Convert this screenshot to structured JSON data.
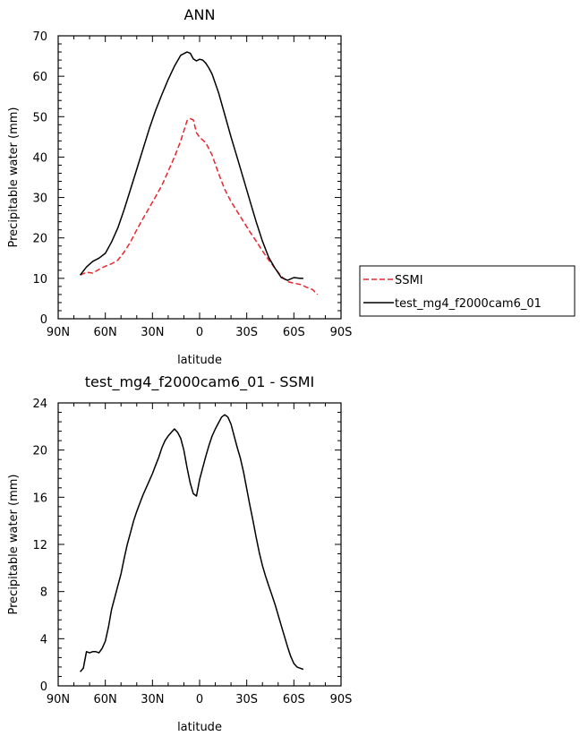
{
  "chart_data": [
    {
      "type": "line",
      "title": "ANN",
      "xlabel": "latitude",
      "ylabel": "Precipitable water (mm)",
      "xlim": [
        90,
        -90
      ],
      "ylim": [
        0,
        70
      ],
      "x_ticks": [
        90,
        60,
        30,
        0,
        -30,
        -60,
        -90
      ],
      "x_tick_labels": [
        "90N",
        "60N",
        "30N",
        "0",
        "30S",
        "60S",
        "90S"
      ],
      "y_ticks": [
        0,
        10,
        20,
        30,
        40,
        50,
        60,
        70
      ],
      "y_tick_labels": [
        "0",
        "10",
        "20",
        "30",
        "40",
        "50",
        "60",
        "70"
      ],
      "legend": "outside-right",
      "series": [
        {
          "name": "SSMI",
          "color": "#e8262c",
          "style": "dashed",
          "x": [
            76,
            72,
            68,
            64,
            60,
            56,
            52,
            48,
            44,
            40,
            36,
            32,
            28,
            24,
            20,
            16,
            12,
            8,
            6,
            4,
            2,
            0,
            -4,
            -8,
            -12,
            -16,
            -20,
            -24,
            -28,
            -32,
            -36,
            -40,
            -44,
            -48,
            -52,
            -56,
            -60,
            -64,
            -68,
            -72,
            -75
          ],
          "y": [
            10.8,
            11.5,
            11.3,
            12.2,
            13,
            13.6,
            14.5,
            16.5,
            19,
            22,
            24.8,
            27.5,
            30.2,
            33,
            36.5,
            40,
            44,
            49,
            49.5,
            49.2,
            46,
            44.9,
            43.5,
            40.5,
            36,
            32,
            29,
            26.5,
            24,
            21.5,
            19.2,
            16.8,
            14.5,
            12.5,
            10.5,
            9.2,
            8.8,
            8.5,
            7.8,
            7.2,
            6
          ]
        },
        {
          "name": "test_mg4_f2000cam6_01",
          "color": "#000000",
          "style": "solid",
          "x": [
            76,
            72,
            68,
            64,
            60,
            56,
            52,
            48,
            44,
            40,
            36,
            32,
            28,
            24,
            20,
            16,
            12,
            8,
            6,
            4,
            2,
            0,
            -2,
            -4,
            -6,
            -8,
            -12,
            -16,
            -20,
            -24,
            -28,
            -32,
            -36,
            -40,
            -44,
            -48,
            -52,
            -56,
            -60,
            -64,
            -66
          ],
          "y": [
            10.8,
            12.8,
            14.2,
            15,
            16.2,
            19,
            22.5,
            27,
            32,
            37,
            42,
            47,
            51.5,
            55.5,
            59.2,
            62.5,
            65.2,
            66,
            65.7,
            64.3,
            63.8,
            64.2,
            64,
            63.2,
            62,
            60.5,
            56,
            50.5,
            45,
            39.8,
            34.5,
            29.2,
            24,
            19.2,
            15.2,
            12.5,
            10.2,
            9.5,
            10.2,
            10,
            10
          ]
        }
      ]
    },
    {
      "type": "line",
      "title": "test_mg4_f2000cam6_01 - SSMI",
      "xlabel": "latitude",
      "ylabel": "Precipitable water (mm)",
      "xlim": [
        90,
        -90
      ],
      "ylim": [
        0,
        24
      ],
      "x_ticks": [
        90,
        60,
        30,
        0,
        -30,
        -60,
        -90
      ],
      "x_tick_labels": [
        "90N",
        "60N",
        "30N",
        "0",
        "30S",
        "60S",
        "90S"
      ],
      "y_ticks": [
        0,
        4,
        8,
        12,
        16,
        20,
        24
      ],
      "y_tick_labels": [
        "0",
        "4",
        "8",
        "12",
        "16",
        "20",
        "24"
      ],
      "series": [
        {
          "name": "",
          "color": "#000000",
          "style": "solid",
          "x": [
            76,
            74,
            72,
            70,
            68,
            66,
            64,
            62,
            60,
            58,
            56,
            54,
            52,
            50,
            48,
            46,
            44,
            42,
            40,
            38,
            36,
            34,
            32,
            30,
            28,
            26,
            24,
            22,
            20,
            18,
            16,
            14,
            12,
            10,
            8,
            6,
            4,
            2,
            0,
            -2,
            -4,
            -6,
            -8,
            -10,
            -12,
            -14,
            -16,
            -18,
            -20,
            -22,
            -24,
            -26,
            -28,
            -30,
            -32,
            -34,
            -36,
            -38,
            -40,
            -42,
            -44,
            -46,
            -48,
            -50,
            -52,
            -54,
            -56,
            -58,
            -60,
            -62,
            -64,
            -66
          ],
          "y": [
            1.2,
            1.5,
            2.9,
            2.8,
            2.9,
            2.9,
            2.8,
            3.2,
            3.8,
            5,
            6.5,
            7.5,
            8.5,
            9.5,
            10.8,
            12,
            13,
            14,
            14.8,
            15.5,
            16.2,
            16.8,
            17.4,
            18,
            18.7,
            19.4,
            20.2,
            20.8,
            21.2,
            21.5,
            21.8,
            21.5,
            21,
            20,
            18.5,
            17.2,
            16.3,
            16.1,
            17.5,
            18.5,
            19.5,
            20.4,
            21.2,
            21.8,
            22.3,
            22.8,
            23,
            22.8,
            22.2,
            21.2,
            20.2,
            19.3,
            18.1,
            16.7,
            15.3,
            14,
            12.6,
            11.3,
            10.2,
            9.3,
            8.5,
            7.7,
            6.9,
            6,
            5.1,
            4.2,
            3.3,
            2.5,
            1.9,
            1.6,
            1.5,
            1.4
          ]
        }
      ]
    }
  ]
}
